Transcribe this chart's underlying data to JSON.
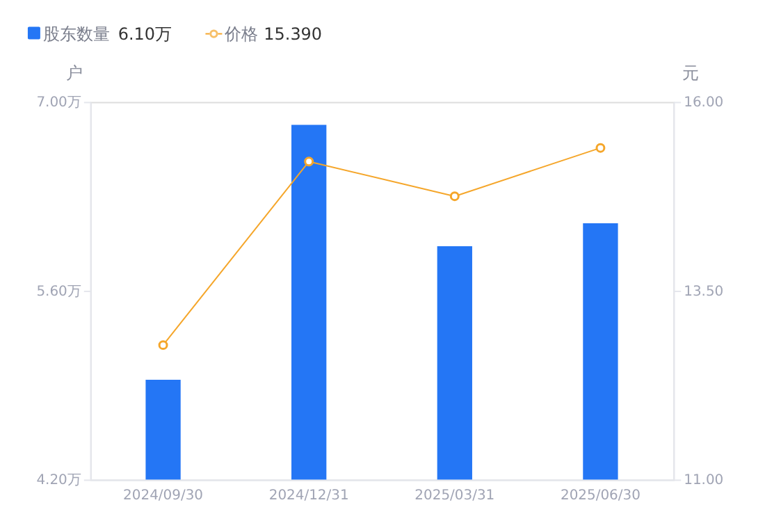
{
  "chart_data": {
    "type": "bar",
    "categories": [
      "2024/09/30",
      "2024/12/31",
      "2025/03/31",
      "2025/06/30"
    ],
    "series": [
      {
        "name": "股东数量",
        "color": "#2476f5",
        "values": [
          4.94,
          6.83,
          5.93,
          6.1
        ]
      },
      {
        "name": "价格",
        "type": "line",
        "axis": "y2",
        "color": "#f5a62a",
        "values": [
          12.78,
          15.21,
          14.75,
          15.39
        ],
        "marker": "circle"
      }
    ],
    "ylabel": "户",
    "y2label": "元",
    "ylim": [
      4.2,
      7.0
    ],
    "yticks": [
      {
        "value": 4.2,
        "label": "4.20万"
      },
      {
        "value": 5.6,
        "label": "5.60万"
      },
      {
        "value": 7.0,
        "label": "7.00万"
      }
    ],
    "y2lim": [
      11,
      16
    ],
    "y2ticks": [
      {
        "value": 11,
        "label": "11.00"
      },
      {
        "value": 13.5,
        "label": "13.50"
      },
      {
        "value": 16,
        "label": "16.00"
      }
    ],
    "annotations": [
      "6.10万",
      "15.390"
    ],
    "legend": "top left",
    "grid": false
  }
}
